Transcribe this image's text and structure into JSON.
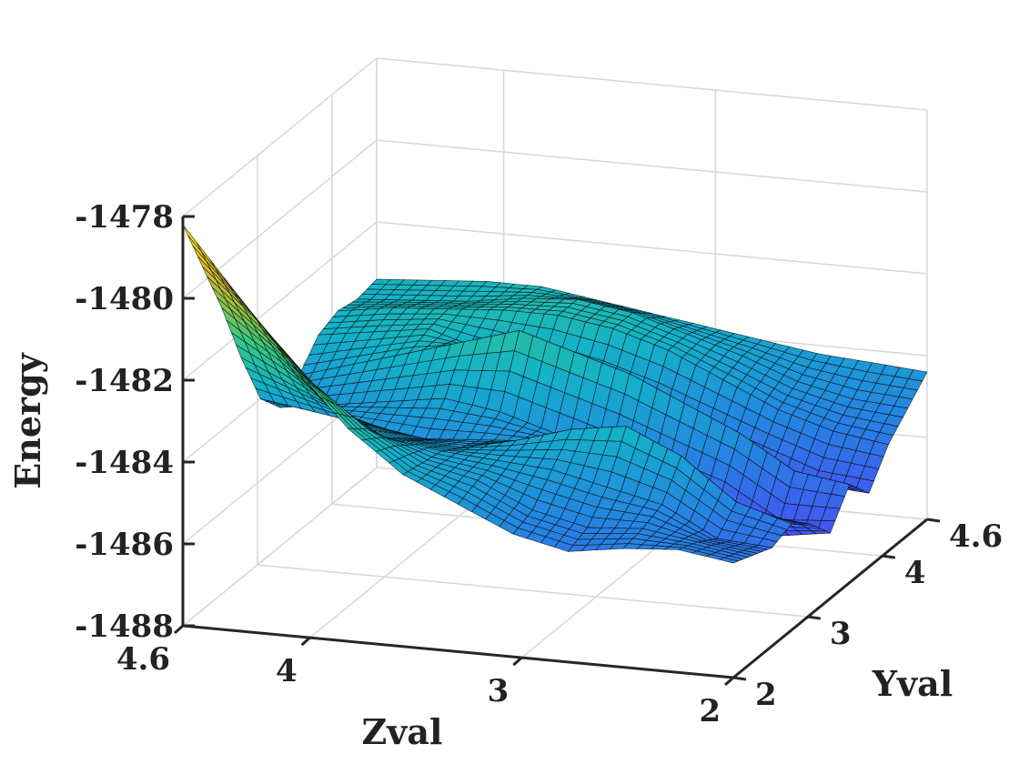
{
  "chart_data": {
    "type": "surface3d",
    "title": "",
    "xlabel": "Zval",
    "ylabel": "Yval",
    "zlabel": "Energy",
    "xlim": [
      2,
      4.6
    ],
    "ylim": [
      2,
      4.6
    ],
    "zlim": [
      -1488,
      -1478
    ],
    "grid": true,
    "colormap": "parula",
    "x_ticks": [
      {
        "value": 4.6,
        "label": "4.6"
      },
      {
        "value": 4,
        "label": "4"
      },
      {
        "value": 3,
        "label": "3"
      },
      {
        "value": 2,
        "label": "2"
      }
    ],
    "y_ticks": [
      {
        "value": 2,
        "label": "2"
      },
      {
        "value": 3,
        "label": "3"
      },
      {
        "value": 4,
        "label": "4"
      },
      {
        "value": 4.6,
        "label": "4.6"
      }
    ],
    "z_ticks": [
      {
        "value": -1488,
        "label": "-1488"
      },
      {
        "value": -1486,
        "label": "-1486"
      },
      {
        "value": -1484,
        "label": "-1484"
      },
      {
        "value": -1482,
        "label": "-1482"
      },
      {
        "value": -1480,
        "label": "-1480"
      },
      {
        "value": -1478,
        "label": "-1478"
      }
    ],
    "surface": {
      "x": [
        2.0,
        2.26,
        2.52,
        2.78,
        3.04,
        3.3,
        3.56,
        3.82,
        4.08,
        4.34,
        4.6
      ],
      "y": [
        2.0,
        2.26,
        2.52,
        2.78,
        3.04,
        3.3,
        3.56,
        3.82,
        4.08,
        4.34,
        4.6
      ],
      "z": [
        [
          -1485.2,
          -1485.4,
          -1485.6,
          -1485.4,
          -1485.8,
          -1486.4,
          -1485.6,
          -1486.2,
          -1485.4,
          -1484.9,
          -1484.4
        ],
        [
          -1485.0,
          -1485.2,
          -1485.5,
          -1485.0,
          -1485.7,
          -1486.6,
          -1485.4,
          -1486.1,
          -1485.2,
          -1484.8,
          -1484.3
        ],
        [
          -1485.1,
          -1485.0,
          -1484.8,
          -1484.0,
          -1485.4,
          -1485.8,
          -1484.6,
          -1485.6,
          -1484.8,
          -1484.5,
          -1484.2
        ],
        [
          -1485.3,
          -1485.1,
          -1484.5,
          -1483.4,
          -1485.0,
          -1485.4,
          -1484.0,
          -1485.2,
          -1484.2,
          -1484.0,
          -1484.0
        ],
        [
          -1485.0,
          -1484.8,
          -1484.2,
          -1483.6,
          -1484.6,
          -1485.0,
          -1483.4,
          -1484.8,
          -1483.6,
          -1483.6,
          -1483.8
        ],
        [
          -1484.4,
          -1484.2,
          -1484.1,
          -1484.0,
          -1484.4,
          -1484.6,
          -1483.0,
          -1484.4,
          -1483.2,
          -1483.2,
          -1483.6
        ],
        [
          -1483.8,
          -1483.9,
          -1484.0,
          -1484.3,
          -1484.5,
          -1484.2,
          -1482.6,
          -1484.0,
          -1483.0,
          -1483.0,
          -1483.4
        ],
        [
          -1482.8,
          -1483.2,
          -1483.8,
          -1484.2,
          -1484.6,
          -1484.0,
          -1483.0,
          -1483.6,
          -1483.0,
          -1483.1,
          -1483.2
        ],
        [
          -1481.4,
          -1482.2,
          -1483.2,
          -1483.8,
          -1484.4,
          -1484.2,
          -1483.4,
          -1483.2,
          -1483.1,
          -1483.3,
          -1483.2
        ],
        [
          -1479.8,
          -1480.8,
          -1482.0,
          -1483.2,
          -1484.2,
          -1484.4,
          -1483.8,
          -1483.4,
          -1483.2,
          -1483.4,
          -1483.3
        ],
        [
          -1478.2,
          -1479.6,
          -1481.0,
          -1482.6,
          -1484.0,
          -1484.6,
          -1484.2,
          -1483.6,
          -1483.4,
          -1483.5,
          -1483.4
        ]
      ]
    }
  }
}
